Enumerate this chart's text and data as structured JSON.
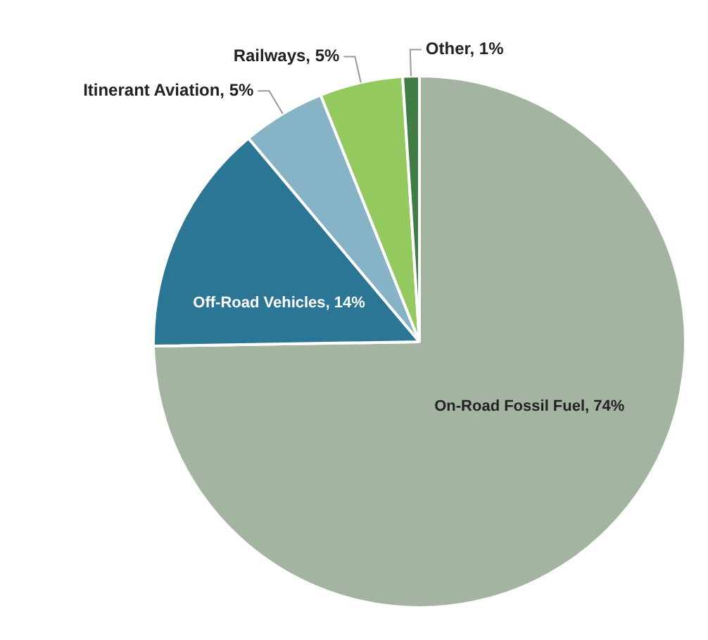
{
  "chart_data": {
    "type": "pie",
    "categories": [
      "On-Road Fossil Fuel",
      "Off-Road Vehicles",
      "Itinerant Aviation",
      "Railways",
      "Other"
    ],
    "values": [
      74,
      14,
      5,
      5,
      1
    ],
    "value_labels": [
      "74%",
      "14%",
      "5%",
      "5%",
      "1%"
    ],
    "colors": [
      "#a3b5a0",
      "#2a7694",
      "#86b3c6",
      "#93c95e",
      "#3f7d45"
    ],
    "legend": false
  }
}
